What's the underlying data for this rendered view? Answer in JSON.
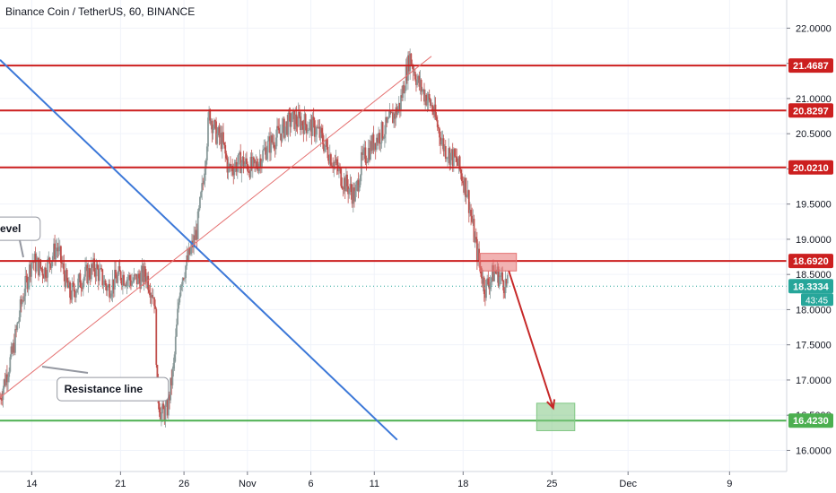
{
  "header": {
    "title": "Binance Coin / TetherUS, 60, BINANCE"
  },
  "chart_data": {
    "type": "candlestick",
    "title": "Binance Coin / TetherUS, 60, BINANCE",
    "x_axis": {
      "ticks": [
        "14",
        "21",
        "26",
        "Nov",
        "6",
        "11",
        "18",
        "25",
        "Dec",
        "9"
      ],
      "tick_days": [
        -17,
        -10,
        -5,
        0,
        5,
        10,
        17,
        24,
        30,
        38
      ],
      "range_days": [
        -19.5,
        42.5
      ]
    },
    "y_axis": {
      "ticks": [
        "16.0000",
        "16.5000",
        "17.0000",
        "17.5000",
        "18.0000",
        "18.5000",
        "19.0000",
        "19.5000",
        "20.0000",
        "20.5000",
        "21.0000",
        "21.5000",
        "22.0000"
      ],
      "range": [
        15.7,
        22.4
      ]
    },
    "price_levels": [
      {
        "label": "21.4687",
        "value": 21.4687,
        "color": "#cc1f1f"
      },
      {
        "label": "20.8297",
        "value": 20.8297,
        "color": "#cc1f1f"
      },
      {
        "label": "20.0210",
        "value": 20.021,
        "color": "#cc1f1f"
      },
      {
        "label": "18.6920",
        "value": 18.692,
        "color": "#cc1f1f"
      },
      {
        "label": "16.4230",
        "value": 16.423,
        "color": "#4caf50"
      }
    ],
    "current_price": {
      "label": "18.3334",
      "value": 18.3334,
      "countdown": "43:45",
      "color": "#26a69a"
    },
    "trendlines": [
      {
        "kind": "descending",
        "color": "#3c78d8",
        "from": {
          "day": -19.5,
          "price": 21.55
        },
        "to": {
          "day": 11.8,
          "price": 16.15
        }
      },
      {
        "kind": "ascending",
        "color": "#e57373",
        "from": {
          "day": -19.5,
          "price": 16.75
        },
        "to": {
          "day": 14.5,
          "price": 21.6
        }
      }
    ],
    "annotations": [
      {
        "text": "evel",
        "day": -19.2,
        "price": 19.15
      },
      {
        "text": "Resistance line",
        "day": -15,
        "price": 16.87
      }
    ],
    "zones": [
      {
        "kind": "entry",
        "color": "#e57373",
        "day_from": 18.3,
        "day_to": 21.2,
        "price_from": 18.55,
        "price_to": 18.8
      },
      {
        "kind": "target",
        "color": "#81c784",
        "day_from": 22.8,
        "day_to": 25.8,
        "price_from": 16.28,
        "price_to": 16.67
      }
    ],
    "arrow": {
      "color": "#c62828",
      "from": {
        "day": 20.6,
        "price": 18.55
      },
      "to": {
        "day": 24.1,
        "price": 16.6
      }
    },
    "price_path": [
      {
        "day": -19.5,
        "price": 16.75
      },
      {
        "day": -18.5,
        "price": 17.4
      },
      {
        "day": -17.8,
        "price": 18.1
      },
      {
        "day": -17.0,
        "price": 18.7
      },
      {
        "day": -16.0,
        "price": 18.55
      },
      {
        "day": -15.0,
        "price": 18.9
      },
      {
        "day": -14.0,
        "price": 18.2
      },
      {
        "day": -13.0,
        "price": 18.45
      },
      {
        "day": -12.0,
        "price": 18.6
      },
      {
        "day": -11.0,
        "price": 18.3
      },
      {
        "day": -10.0,
        "price": 18.5
      },
      {
        "day": -9.0,
        "price": 18.4
      },
      {
        "day": -8.0,
        "price": 18.5
      },
      {
        "day": -7.3,
        "price": 18.15
      },
      {
        "day": -7.1,
        "price": 16.85
      },
      {
        "day": -6.8,
        "price": 16.5
      },
      {
        "day": -6.3,
        "price": 16.6
      },
      {
        "day": -5.8,
        "price": 17.2
      },
      {
        "day": -5.3,
        "price": 18.4
      },
      {
        "day": -4.8,
        "price": 18.65
      },
      {
        "day": -4.0,
        "price": 19.1
      },
      {
        "day": -3.5,
        "price": 19.8
      },
      {
        "day": -3.0,
        "price": 20.8
      },
      {
        "day": -2.5,
        "price": 20.5
      },
      {
        "day": -2.0,
        "price": 20.4
      },
      {
        "day": -1.5,
        "price": 20.0
      },
      {
        "day": -0.5,
        "price": 20.1
      },
      {
        "day": 0.5,
        "price": 20.0
      },
      {
        "day": 1.5,
        "price": 20.3
      },
      {
        "day": 2.5,
        "price": 20.5
      },
      {
        "day": 3.5,
        "price": 20.7
      },
      {
        "day": 4.5,
        "price": 20.65
      },
      {
        "day": 5.5,
        "price": 20.55
      },
      {
        "day": 6.5,
        "price": 20.2
      },
      {
        "day": 7.5,
        "price": 19.85
      },
      {
        "day": 8.5,
        "price": 19.6
      },
      {
        "day": 9.0,
        "price": 20.1
      },
      {
        "day": 10.0,
        "price": 20.4
      },
      {
        "day": 11.0,
        "price": 20.6
      },
      {
        "day": 12.0,
        "price": 20.9
      },
      {
        "day": 12.8,
        "price": 21.6
      },
      {
        "day": 13.5,
        "price": 21.2
      },
      {
        "day": 14.5,
        "price": 20.9
      },
      {
        "day": 15.5,
        "price": 20.3
      },
      {
        "day": 16.5,
        "price": 20.1
      },
      {
        "day": 17.3,
        "price": 19.7
      },
      {
        "day": 18.0,
        "price": 18.9
      },
      {
        "day": 18.7,
        "price": 18.3
      },
      {
        "day": 19.5,
        "price": 18.55
      },
      {
        "day": 20.5,
        "price": 18.3334
      }
    ]
  }
}
